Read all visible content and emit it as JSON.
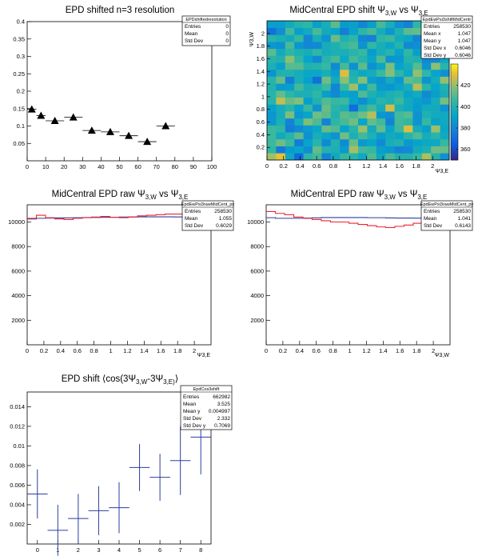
{
  "chart_data": [
    {
      "id": "res",
      "type": "scatter",
      "title": "EPD shifted n=3 resolution",
      "xlabel": "",
      "ylabel": "",
      "xlim": [
        0,
        100
      ],
      "ylim": [
        0,
        0.4
      ],
      "x_ticks": [
        0,
        10,
        20,
        30,
        40,
        50,
        60,
        70,
        80,
        90,
        100
      ],
      "y_ticks": [
        0.05,
        0.1,
        0.15,
        0.2,
        0.25,
        0.3,
        0.35,
        0.4
      ],
      "points": [
        {
          "x": 2.5,
          "y": 0.148,
          "xerr": 2.5
        },
        {
          "x": 7.5,
          "y": 0.13,
          "xerr": 2.5
        },
        {
          "x": 15,
          "y": 0.115,
          "xerr": 5
        },
        {
          "x": 25,
          "y": 0.125,
          "xerr": 5
        },
        {
          "x": 35,
          "y": 0.087,
          "xerr": 5
        },
        {
          "x": 45,
          "y": 0.083,
          "xerr": 5
        },
        {
          "x": 55,
          "y": 0.072,
          "xerr": 5
        },
        {
          "x": 65,
          "y": 0.055,
          "xerr": 5
        },
        {
          "x": 75,
          "y": 0.1,
          "xerr": 5
        }
      ],
      "stats": {
        "name": "EPDshiftedresolution",
        "rows": [
          [
            "Entries",
            "0"
          ],
          [
            "Mean",
            "0"
          ],
          [
            "Std Dev",
            "0"
          ]
        ]
      }
    },
    {
      "id": "h2",
      "type": "heatmap",
      "title": "MidCentral EPD shift Ψ 3,W vs Ψ 3,E",
      "title_parts": [
        "MidCentral EPD shift ",
        "Ψ",
        "3,W",
        " vs ",
        "Ψ",
        "3,E"
      ],
      "xlabel": "Ψ3,E",
      "ylabel": "Ψ3,W",
      "xlim": [
        0,
        2.2
      ],
      "ylim": [
        0,
        2.2
      ],
      "x_ticks": [
        "0",
        "0.2",
        "0.4",
        "0.6",
        "0.8",
        "1",
        "1.2",
        "1.4",
        "1.6",
        "1.8",
        "2"
      ],
      "y_ticks": [
        "0.2",
        "0.4",
        "0.6",
        "0.8",
        "1",
        "1.2",
        "1.4",
        "1.6",
        "1.8",
        "2"
      ],
      "z_ticks": [
        360,
        380,
        400,
        420
      ],
      "zlim": [
        350,
        440
      ],
      "bins": 20,
      "values": [
        [
          421,
          430,
          393,
          369,
          403,
          407,
          377,
          394,
          405,
          401,
          393,
          409,
          393,
          408,
          400,
          400,
          405,
          422,
          401,
          383
        ],
        [
          404,
          374,
          387,
          391,
          382,
          412,
          400,
          398,
          387,
          421,
          407,
          405,
          389,
          386,
          378,
          380,
          395,
          398,
          414,
          413
        ],
        [
          406,
          414,
          406,
          375,
          390,
          402,
          380,
          400,
          381,
          413,
          386,
          391,
          381,
          397,
          400,
          386,
          390,
          393,
          393,
          405
        ],
        [
          406,
          394,
          401,
          411,
          383,
          397,
          392,
          384,
          414,
          398,
          407,
          399,
          388,
          395,
          392,
          402,
          409,
          396,
          402,
          394
        ],
        [
          406,
          404,
          375,
          381,
          387,
          392,
          413,
          409,
          390,
          402,
          420,
          395,
          412,
          391,
          406,
          428,
          396,
          389,
          420,
          392
        ],
        [
          386,
          398,
          378,
          396,
          416,
          409,
          378,
          403,
          408,
          414,
          391,
          412,
          407,
          378,
          407,
          404,
          384,
          405,
          390,
          394
        ],
        [
          385,
          396,
          416,
          386,
          391,
          414,
          411,
          400,
          411,
          408,
          414,
          423,
          386,
          382,
          407,
          410,
          384,
          399,
          395,
          394
        ],
        [
          389,
          396,
          402,
          390,
          405,
          384,
          413,
          402,
          398,
          370,
          399,
          407,
          396,
          427,
          398,
          394,
          387,
          395,
          395,
          384
        ],
        [
          402,
          425,
          413,
          417,
          389,
          400,
          409,
          405,
          406,
          390,
          382,
          393,
          402,
          399,
          406,
          395,
          389,
          385,
          396,
          415
        ],
        [
          402,
          412,
          403,
          398,
          398,
          404,
          389,
          380,
          391,
          388,
          409,
          399,
          394,
          398,
          401,
          390,
          395,
          381,
          389,
          397
        ],
        [
          400,
          387,
          389,
          407,
          397,
          399,
          406,
          379,
          405,
          420,
          391,
          407,
          387,
          385,
          391,
          397,
          423,
          402,
          391,
          399
        ],
        [
          402,
          413,
          376,
          397,
          389,
          371,
          414,
          395,
          418,
          401,
          417,
          388,
          384,
          395,
          386,
          412,
          409,
          384,
          396,
          419
        ],
        [
          384,
          400,
          400,
          396,
          392,
          392,
          397,
          388,
          428,
          398,
          393,
          396,
          406,
          417,
          403,
          393,
          419,
          404,
          391,
          383
        ],
        [
          398,
          389,
          410,
          410,
          400,
          401,
          405,
          381,
          408,
          383,
          411,
          383,
          392,
          416,
          390,
          396,
          410,
          384,
          418,
          402
        ],
        [
          402,
          400,
          418,
          404,
          391,
          380,
          402,
          408,
          393,
          407,
          401,
          392,
          409,
          384,
          386,
          401,
          399,
          380,
          380,
          392
        ],
        [
          411,
          395,
          403,
          399,
          397,
          404,
          396,
          398,
          398,
          402,
          405,
          387,
          397,
          402,
          390,
          404,
          389,
          400,
          388,
          397
        ],
        [
          386,
          383,
          408,
          385,
          379,
          380,
          396,
          399,
          405,
          408,
          384,
          404,
          397,
          392,
          401,
          380,
          382,
          400,
          423,
          393
        ],
        [
          402,
          398,
          395,
          405,
          379,
          397,
          384,
          413,
          399,
          403,
          379,
          377,
          403,
          406,
          395,
          392,
          378,
          413,
          393,
          399
        ],
        [
          371,
          382,
          407,
          389,
          395,
          408,
          395,
          391,
          376,
          390,
          403,
          408,
          396,
          385,
          399,
          411,
          412,
          392,
          399,
          385
        ],
        [
          388,
          388,
          395,
          401,
          403,
          389,
          397,
          411,
          387,
          389,
          379,
          389,
          408,
          397,
          383,
          377,
          403,
          387,
          392,
          393
        ]
      ],
      "stats": {
        "name": "EpdEwPsi3shiftMidCentr",
        "rows": [
          [
            "Entries",
            "258530"
          ],
          [
            "Mean x",
            "1.047"
          ],
          [
            "Mean y",
            "1.047"
          ],
          [
            "Std Dev x",
            "0.6046"
          ],
          [
            "Std Dev y",
            "0.6046"
          ]
        ]
      }
    },
    {
      "id": "rawE",
      "type": "line",
      "title": "MidCentral EPD raw Ψ 3,W vs Ψ 3,E",
      "title_parts": [
        "MidCentral EPD raw ",
        "Ψ",
        "3,W",
        " vs ",
        "Ψ",
        "3,E"
      ],
      "xlabel": "Ψ3,E",
      "ylabel": "",
      "xlim": [
        0,
        2.2
      ],
      "ylim": [
        0,
        11400
      ],
      "x_ticks": [
        "0",
        "0.2",
        "0.4",
        "0.6",
        "0.8",
        "1",
        "1.2",
        "1.4",
        "1.6",
        "1.8",
        "2"
      ],
      "y_ticks": [
        2000,
        4000,
        6000,
        8000,
        10000
      ],
      "bins": 20,
      "series": [
        {
          "color": "#2b3d9e",
          "values": [
            10250,
            10300,
            10320,
            10330,
            10340,
            10350,
            10360,
            10370,
            10380,
            10390,
            10400,
            10410,
            10420,
            10420,
            10420,
            10420,
            10410,
            10400,
            10390,
            10380
          ]
        },
        {
          "color": "#ee2233",
          "values": [
            10300,
            10550,
            10350,
            10250,
            10200,
            10300,
            10350,
            10400,
            10450,
            10380,
            10350,
            10400,
            10500,
            10550,
            10600,
            10650,
            10650,
            10600,
            10450,
            10350
          ]
        }
      ],
      "stats": {
        "name": "EpdEwPsi3rawMidCent_px",
        "rows": [
          [
            "Entries",
            "258530"
          ],
          [
            "Mean",
            "1.055"
          ],
          [
            "Std Dev",
            "0.6029"
          ]
        ]
      }
    },
    {
      "id": "rawW",
      "type": "line",
      "title": "MidCentral EPD raw Ψ 3,W vs Ψ 3,E",
      "title_parts": [
        "MidCentral EPD raw ",
        "Ψ",
        "3,W",
        " vs ",
        "Ψ",
        "3,E"
      ],
      "xlabel": "Ψ3,W",
      "ylabel": "",
      "xlim": [
        0,
        2.2
      ],
      "ylim": [
        0,
        11400
      ],
      "x_ticks": [
        "0",
        "0.2",
        "0.4",
        "0.6",
        "0.8",
        "1",
        "1.2",
        "1.4",
        "1.6",
        "1.8",
        "2"
      ],
      "y_ticks": [
        2000,
        4000,
        6000,
        8000,
        10000
      ],
      "bins": 20,
      "series": [
        {
          "color": "#2b3d9e",
          "values": [
            10350,
            10300,
            10300,
            10300,
            10320,
            10340,
            10360,
            10360,
            10360,
            10360,
            10360,
            10350,
            10350,
            10330,
            10320,
            10320,
            10310,
            10320,
            10340,
            10360
          ]
        },
        {
          "color": "#ee2233",
          "values": [
            10850,
            10700,
            10600,
            10400,
            10300,
            10200,
            10100,
            10000,
            10000,
            9900,
            9800,
            9700,
            9600,
            9550,
            9650,
            9750,
            9900,
            10000,
            10150,
            10300
          ]
        }
      ],
      "stats": {
        "name": "EpdEwPsi3rawMidCent_py",
        "rows": [
          [
            "Entries",
            "258530"
          ],
          [
            "Mean",
            "1.041"
          ],
          [
            "Std Dev",
            "0.6143"
          ]
        ]
      }
    },
    {
      "id": "cos",
      "type": "scatter",
      "title": "EPD shift ⟨cos(3Ψ 3,W -3Ψ 3,E)⟩",
      "title_parts": [
        "EPD shift ⟨cos(3",
        "Ψ",
        "3,W",
        "-3",
        "Ψ",
        "3,E)",
        "⟩"
      ],
      "xlabel": "",
      "ylabel": "",
      "xlim": [
        -0.5,
        8.5
      ],
      "ylim": [
        0,
        0.0155
      ],
      "x_ticks": [
        0,
        1,
        2,
        3,
        4,
        5,
        6,
        7,
        8
      ],
      "y_ticks": [
        0.002,
        0.004,
        0.006,
        0.008,
        0.01,
        0.012,
        0.014
      ],
      "points": [
        {
          "x": 0,
          "y": 0.0051,
          "yerr": 0.0025,
          "xerr": 0.5
        },
        {
          "x": 1,
          "y": 0.0014,
          "yerr": 0.0026,
          "xerr": 0.5
        },
        {
          "x": 2,
          "y": 0.0026,
          "yerr": 0.0025,
          "xerr": 0.5
        },
        {
          "x": 3,
          "y": 0.0034,
          "yerr": 0.0025,
          "xerr": 0.5
        },
        {
          "x": 4,
          "y": 0.0037,
          "yerr": 0.0026,
          "xerr": 0.5
        },
        {
          "x": 5,
          "y": 0.0078,
          "yerr": 0.0024,
          "xerr": 0.5
        },
        {
          "x": 6,
          "y": 0.0068,
          "yerr": 0.0024,
          "xerr": 0.5
        },
        {
          "x": 7,
          "y": 0.0085,
          "yerr": 0.0035,
          "xerr": 0.5
        },
        {
          "x": 8,
          "y": 0.0109,
          "yerr": 0.0038,
          "xerr": 0.5
        }
      ],
      "stats": {
        "name": "EpdCos3shift",
        "rows": [
          [
            "Entries",
            "662982"
          ],
          [
            "Mean",
            "3.525"
          ],
          [
            "Mean y",
            "0.004997"
          ],
          [
            "Std Dev",
            "2.332"
          ],
          [
            "Std Dev y",
            "0.7069"
          ]
        ]
      }
    }
  ]
}
